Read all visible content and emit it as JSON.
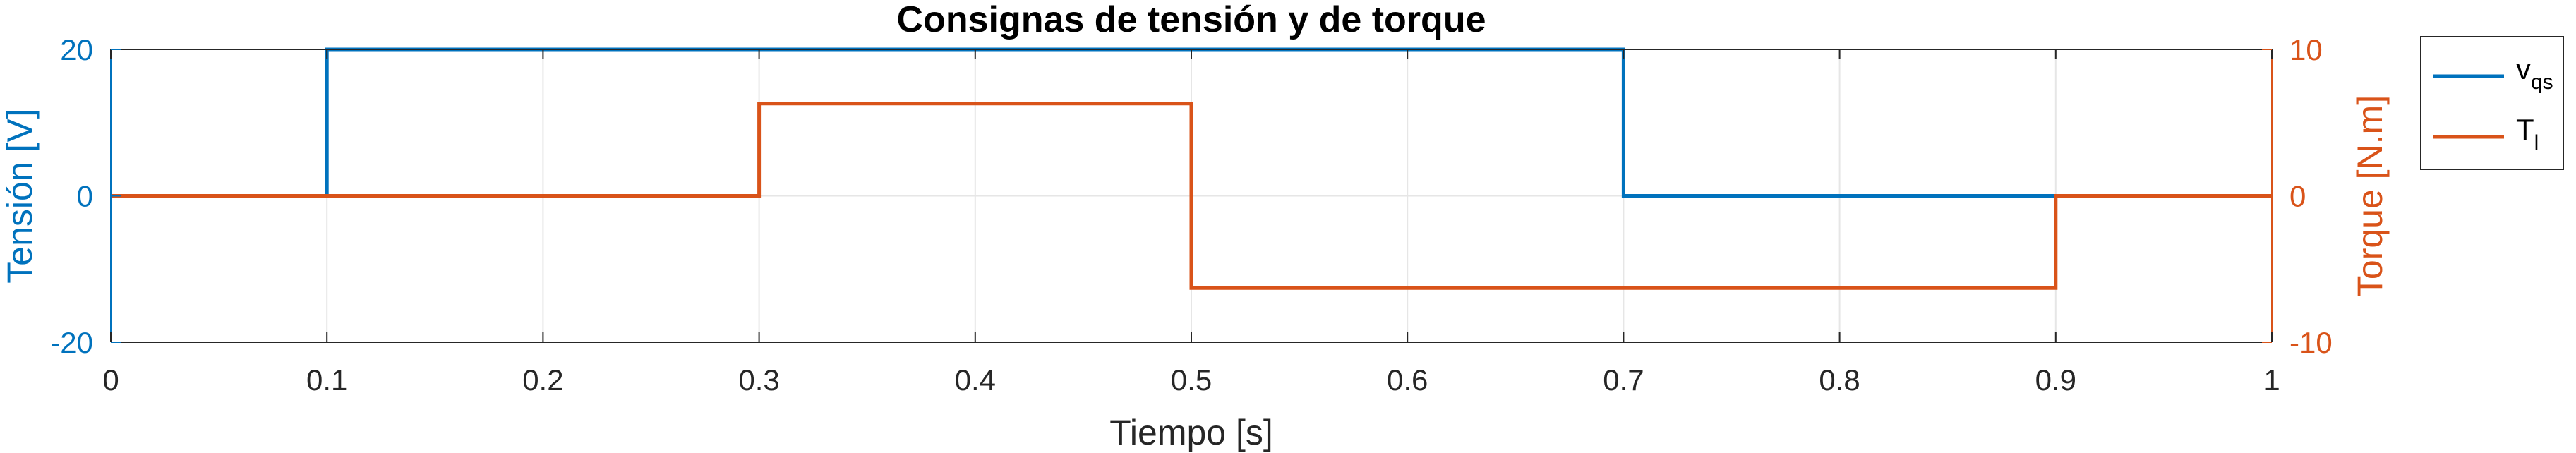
{
  "chart_data": {
    "type": "line",
    "title": "Consignas de tensión y de torque",
    "xlabel": "Tiempo [s]",
    "ylabel_left": "Tensión [V]",
    "ylabel_right": "Torque [N.m]",
    "xlim": [
      0,
      1
    ],
    "ylim_left": [
      -20,
      20
    ],
    "ylim_right": [
      -10,
      10
    ],
    "x_ticks": [
      "0",
      "0.1",
      "0.2",
      "0.3",
      "0.4",
      "0.5",
      "0.6",
      "0.7",
      "0.8",
      "0.9",
      "1"
    ],
    "y_left_ticks": [
      "20",
      "0",
      "-20"
    ],
    "y_right_ticks": [
      "10",
      "0",
      "-10"
    ],
    "grid": true,
    "legend_position": "outside-right",
    "series": [
      {
        "name": "v_qs",
        "legend_main": "v",
        "legend_sub": "qs",
        "axis": "left",
        "color": "#0072BD",
        "x": [
          0,
          0.1,
          0.1,
          0.7,
          0.7,
          1
        ],
        "y": [
          0,
          0,
          20,
          20,
          0,
          0
        ]
      },
      {
        "name": "T_l",
        "legend_main": "T",
        "legend_sub": "l",
        "axis": "right",
        "color": "#D95319",
        "x": [
          0,
          0.3,
          0.3,
          0.5,
          0.5,
          0.9,
          0.9,
          1
        ],
        "y": [
          0,
          0,
          6.3,
          6.3,
          -6.3,
          -6.3,
          0,
          0
        ]
      }
    ]
  }
}
